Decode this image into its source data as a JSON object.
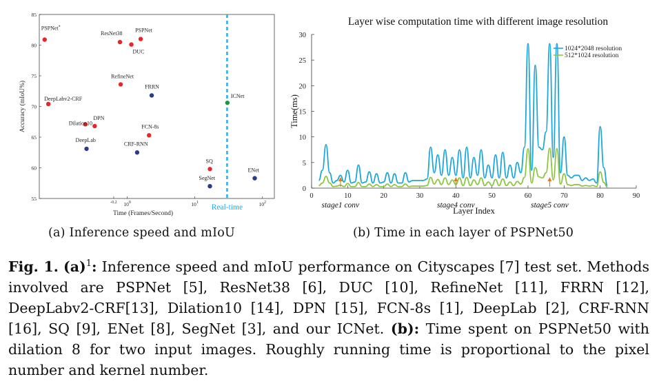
{
  "chart_data": [
    {
      "type": "scatter",
      "title": "",
      "xlabel": "Time (Frames/Second)",
      "ylabel": "Accuracy (mIoU%)",
      "x_scale": "log",
      "xlim": [
        0.05,
        150
      ],
      "ylim": [
        55,
        85
      ],
      "x_tick_labels": [
        "10^-0.2",
        "10^0",
        "10^1",
        "10^2"
      ],
      "x_ticks": [
        0.63,
        1,
        10,
        100
      ],
      "x_tick_text": [
        {
          "base": "",
          "exp": "-0.2"
        },
        {
          "base": "10",
          "exp": "0"
        },
        {
          "base": "10",
          "exp": "1"
        },
        {
          "base": "10",
          "exp": "2"
        }
      ],
      "y_ticks": [
        55,
        60,
        65,
        70,
        75,
        80,
        85
      ],
      "realtime_line": {
        "x": 30,
        "label": "Real-time",
        "color": "#1eaaf0"
      },
      "points": [
        {
          "name": "PSPNet",
          "superscript": "*",
          "x": 0.06,
          "y": 80.9,
          "color": "#e8262a"
        },
        {
          "name": "ResNet38",
          "x": 0.78,
          "y": 80.5,
          "color": "#e8262a"
        },
        {
          "name": "PSPNet",
          "x": 1.58,
          "y": 81.0,
          "color": "#e8262a"
        },
        {
          "name": "DUC",
          "x": 1.15,
          "y": 80.1,
          "color": "#e8262a"
        },
        {
          "name": "RefineNet",
          "x": 0.8,
          "y": 73.6,
          "color": "#e8262a"
        },
        {
          "name": "FRRN",
          "x": 2.3,
          "y": 71.8,
          "color": "#2a3a8c"
        },
        {
          "name": "DeepLabv2-CRF",
          "x": 0.068,
          "y": 70.4,
          "color": "#e8262a"
        },
        {
          "name": "ICNet",
          "x": 30.3,
          "y": 70.6,
          "color": "#1a9a40"
        },
        {
          "name": "Dilation10",
          "x": 0.24,
          "y": 67.1,
          "color": "#e8262a"
        },
        {
          "name": "DPN",
          "x": 0.33,
          "y": 66.8,
          "color": "#e8262a"
        },
        {
          "name": "FCN-8s",
          "x": 2.1,
          "y": 65.3,
          "color": "#e8262a"
        },
        {
          "name": "DeepLab",
          "x": 0.25,
          "y": 63.1,
          "color": "#2a3a8c"
        },
        {
          "name": "CRF-RNN",
          "x": 1.4,
          "y": 62.5,
          "color": "#2a3a8c"
        },
        {
          "name": "SQ",
          "x": 16.7,
          "y": 59.8,
          "color": "#e8262a"
        },
        {
          "name": "ENet",
          "x": 76.9,
          "y": 58.3,
          "color": "#2a3a8c"
        },
        {
          "name": "SegNet",
          "x": 16.7,
          "y": 57.0,
          "color": "#2a3a8c"
        }
      ]
    },
    {
      "type": "line",
      "title": "Layer wise computation time with different image resolution",
      "xlabel": "Layer Index",
      "ylabel": "Time(ms)",
      "xlim": [
        0,
        90
      ],
      "ylim": [
        0,
        30
      ],
      "x_ticks": [
        0,
        10,
        20,
        30,
        40,
        50,
        60,
        70,
        80,
        90
      ],
      "y_ticks": [
        0,
        5,
        10,
        15,
        20,
        25,
        30
      ],
      "legend": "top-right",
      "stage_markers": [
        {
          "label": "stage1 conv",
          "x": 8
        },
        {
          "label": "stage4 conv",
          "x": 40
        },
        {
          "label": "stage5 conv",
          "x": 66
        }
      ],
      "series": [
        {
          "name": "1024*2048 resolution",
          "color": "#1ba7dc",
          "x": [
            2,
            3,
            4,
            5,
            6,
            7,
            8,
            9,
            10,
            11,
            12,
            13,
            14,
            15,
            16,
            17,
            18,
            19,
            20,
            21,
            22,
            23,
            24,
            25,
            26,
            27,
            28,
            29,
            30,
            31,
            32,
            33,
            34,
            35,
            36,
            37,
            38,
            39,
            40,
            41,
            42,
            43,
            44,
            45,
            46,
            47,
            48,
            49,
            50,
            51,
            52,
            53,
            54,
            55,
            56,
            57,
            58,
            59,
            60,
            61,
            62,
            63,
            64,
            65,
            66,
            67,
            68,
            69,
            70,
            71,
            72,
            73,
            74,
            75,
            76,
            77,
            78,
            79,
            80,
            81,
            82
          ],
          "y": [
            1.5,
            3.5,
            8.5,
            3.0,
            1.0,
            1.5,
            2.5,
            1.2,
            3.5,
            1.0,
            1.2,
            4.5,
            1.0,
            1.2,
            3.2,
            1.0,
            2.8,
            1.0,
            1.2,
            3.0,
            1.0,
            2.8,
            1.0,
            1.0,
            3.0,
            1.2,
            1.5,
            1.5,
            1.5,
            1.5,
            1.8,
            8.0,
            3.0,
            6.5,
            2.5,
            7.5,
            2.5,
            6.0,
            2.5,
            7.5,
            2.0,
            8.0,
            2.0,
            6.0,
            2.5,
            7.5,
            2.0,
            4.5,
            2.0,
            6.5,
            2.0,
            7.0,
            2.0,
            4.5,
            2.0,
            5.0,
            3.0,
            8.0,
            28.2,
            3.5,
            24.0,
            8.0,
            7.5,
            11.0,
            28.2,
            6.0,
            28.2,
            3.0,
            10.0,
            2.5,
            2.0,
            2.5,
            2.5,
            1.5,
            2.0,
            1.5,
            1.8,
            1.0,
            12.0,
            4.0,
            0.5
          ]
        },
        {
          "name": "512*1024 resolution",
          "color": "#8cc63f",
          "x": [
            2,
            3,
            4,
            5,
            6,
            7,
            8,
            9,
            10,
            11,
            12,
            13,
            14,
            15,
            16,
            17,
            18,
            19,
            20,
            21,
            22,
            23,
            24,
            25,
            26,
            27,
            28,
            29,
            30,
            31,
            32,
            33,
            34,
            35,
            36,
            37,
            38,
            39,
            40,
            41,
            42,
            43,
            44,
            45,
            46,
            47,
            48,
            49,
            50,
            51,
            52,
            53,
            54,
            55,
            56,
            57,
            58,
            59,
            60,
            61,
            62,
            63,
            64,
            65,
            66,
            67,
            68,
            69,
            70,
            71,
            72,
            73,
            74,
            75,
            76,
            77,
            78,
            79,
            80,
            81,
            82
          ],
          "y": [
            0.5,
            1.0,
            2.3,
            1.0,
            0.3,
            0.4,
            0.6,
            0.3,
            0.9,
            0.3,
            0.3,
            1.1,
            0.3,
            0.3,
            0.8,
            0.3,
            0.7,
            0.3,
            0.3,
            0.8,
            0.3,
            0.7,
            0.3,
            0.3,
            0.8,
            0.3,
            0.4,
            0.4,
            0.4,
            0.4,
            0.5,
            2.1,
            0.8,
            1.7,
            0.7,
            2.0,
            0.7,
            1.6,
            0.7,
            2.0,
            0.5,
            2.1,
            0.5,
            1.6,
            0.7,
            2.0,
            0.5,
            1.2,
            0.5,
            1.7,
            0.5,
            1.8,
            0.5,
            1.2,
            0.5,
            1.3,
            0.8,
            2.1,
            7.7,
            1.0,
            4.0,
            2.2,
            2.0,
            3.0,
            7.8,
            1.6,
            7.7,
            0.8,
            2.8,
            0.7,
            0.5,
            0.7,
            0.7,
            0.4,
            0.5,
            0.4,
            0.5,
            0.3,
            3.2,
            1.1,
            0.2
          ]
        }
      ]
    }
  ],
  "captions": {
    "sub_a": "(a) Inference speed and mIoU",
    "sub_b": "(b) Time in each layer of PSPNet50"
  },
  "figure_caption": {
    "label": "Fig. 1.",
    "part_a": "(a)",
    "footnote_mark": "1",
    "text_a": ": Inference speed and mIoU performance on Cityscapes [7] test set. Methods involved are PSPNet [5], ResNet38 [6], DUC [10], RefineNet [11], FRRN [12], DeepLabv2-CRF[13], Dilation10 [14], DPN [15], FCN-8s [1], DeepLab [2], CRF-RNN [16], SQ [9], ENet [8], SegNet [3], and our ICNet.",
    "part_b": "(b):",
    "text_b": " Time spent on PSPNet50 with dilation 8 for two input images. Roughly running time is proportional to the pixel number and kernel number."
  }
}
